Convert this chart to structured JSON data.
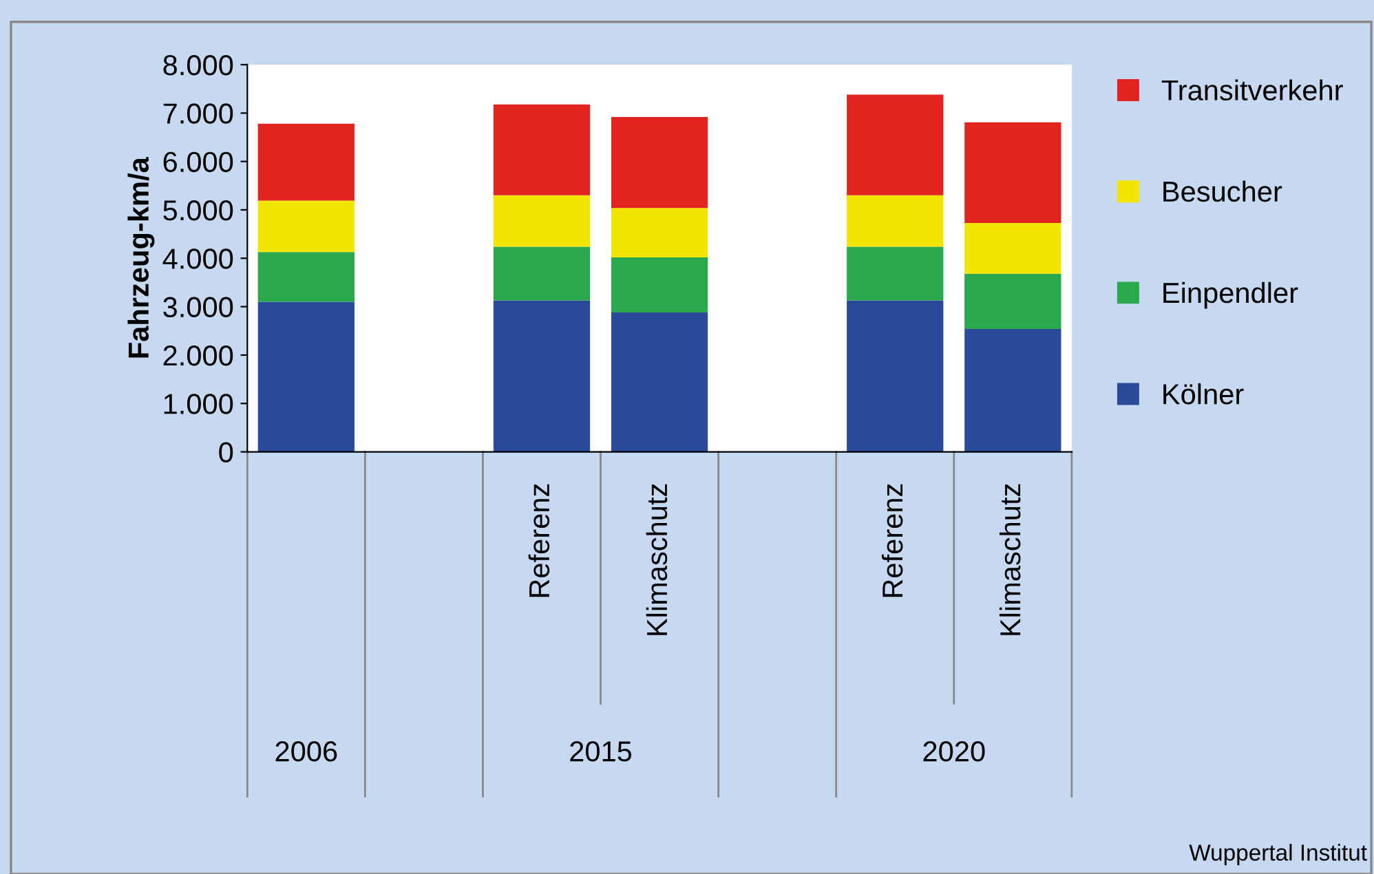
{
  "chart_data": {
    "type": "bar",
    "stacked": true,
    "ylabel": "Fahrzeug-km/a",
    "categories": [
      null,
      null,
      "Referenz",
      "Klimaschutz",
      null,
      "Referenz",
      "Klimaschutz"
    ],
    "series": [
      {
        "name": "Kölner",
        "color": "#2a4a9c",
        "values": [
          3100,
          null,
          3130,
          2880,
          null,
          3130,
          2540
        ]
      },
      {
        "name": "Einpendler",
        "color": "#2aa84e",
        "values": [
          1030,
          null,
          1110,
          1140,
          null,
          1110,
          1140
        ]
      },
      {
        "name": "Besucher",
        "color": "#f2e600",
        "values": [
          1060,
          null,
          1060,
          1020,
          null,
          1060,
          1050
        ]
      },
      {
        "name": "Transitverkehr",
        "color": "#e2231f",
        "values": [
          1590,
          null,
          1880,
          1880,
          null,
          2080,
          2080
        ]
      }
    ],
    "ylim": [
      0,
      8000
    ],
    "yticks": [
      0,
      {
        "value": 1000,
        "label": "1.000"
      },
      {
        "value": 2000,
        "label": "2.000"
      },
      {
        "value": 3000,
        "label": "3.000"
      },
      {
        "value": 4000,
        "label": "4.000"
      },
      {
        "value": 5000,
        "label": "5.000"
      },
      {
        "value": 6000,
        "label": "6.000"
      },
      {
        "value": 7000,
        "label": "7.000"
      },
      {
        "value": 8000,
        "label": "8.000"
      }
    ],
    "grid": false,
    "legend": "right",
    "annotations": [
      "2006",
      "2015",
      "2020",
      "Wuppertal Institut"
    ]
  }
}
